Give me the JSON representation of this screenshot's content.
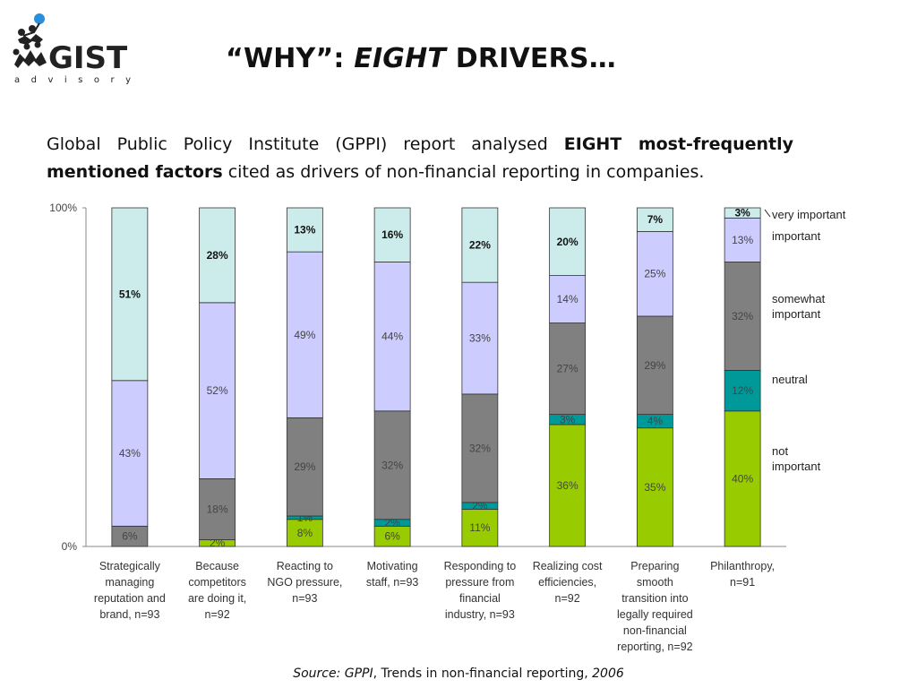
{
  "logo": {
    "brand": "GIST",
    "tagline": "advisory"
  },
  "header": {
    "title_pre": "“WHY”: ",
    "title_em": "EIGHT",
    "title_post": " DRIVERS…"
  },
  "intro": {
    "part1": "Global Public Policy Institute (GPPI) report analysed ",
    "bold": "EIGHT most-frequently mentioned factors",
    "part2": " cited as drivers of non-financial reporting in companies."
  },
  "source": {
    "prefix": "Source: ",
    "org": "GPPI",
    "middle": ", Trends in non-financial reporting, ",
    "year": "2006"
  },
  "colors": {
    "not_important": "#99cc00",
    "neutral": "#009999",
    "somewhat_important": "#808080",
    "important": "#ccccff",
    "very_important": "#ccecec",
    "border": "#333333"
  },
  "chart_data": {
    "type": "bar",
    "stacked": true,
    "ylim": [
      0,
      100
    ],
    "y_ticks": [
      "0%",
      "100%"
    ],
    "categories": [
      "Strategically managing reputation and brand, n=93",
      "Because competitors are doing it, n=92",
      "Reacting to NGO pressure, n=93",
      "Motivating staff, n=93",
      "Responding to pressure from financial industry, n=93",
      "Realizing cost efficiencies, n=92",
      "Preparing smooth transition into legally required non-financial reporting, n=92",
      "Philanthropy, n=91"
    ],
    "category_lines": [
      [
        "Strategically",
        "managing",
        "reputation and",
        "brand, n=93"
      ],
      [
        "Because",
        "competitors",
        "are doing it,",
        "n=92"
      ],
      [
        "Reacting to",
        "NGO pressure,",
        "n=93"
      ],
      [
        "Motivating",
        "staff, n=93"
      ],
      [
        "Responding to",
        "pressure from",
        "financial",
        "industry, n=93"
      ],
      [
        "Realizing cost",
        "efficiencies,",
        "n=92"
      ],
      [
        "Preparing",
        "smooth",
        "transition into",
        "legally required",
        "non-financial",
        "reporting, n=92"
      ],
      [
        "Philanthropy,",
        "n=91"
      ]
    ],
    "series": [
      {
        "name": "not important",
        "legend_lines": [
          "not",
          "important"
        ],
        "color": "#99cc00",
        "values": [
          0,
          2,
          8,
          6,
          11,
          36,
          35,
          40
        ],
        "labels": [
          "",
          "2%",
          "8%",
          "6%",
          "11%",
          "36%",
          "35%",
          "40%"
        ]
      },
      {
        "name": "neutral",
        "legend_lines": [
          "neutral"
        ],
        "color": "#009999",
        "values": [
          0,
          0,
          1,
          2,
          2,
          3,
          4,
          12
        ],
        "labels": [
          "",
          "",
          "1%",
          "2%",
          "2%",
          "3%",
          "4%",
          "12%"
        ]
      },
      {
        "name": "somewhat important",
        "legend_lines": [
          "somewhat",
          "important"
        ],
        "color": "#808080",
        "values": [
          6,
          18,
          29,
          32,
          32,
          27,
          29,
          32
        ],
        "labels": [
          "6%",
          "18%",
          "29%",
          "32%",
          "32%",
          "27%",
          "29%",
          "32%"
        ]
      },
      {
        "name": "important",
        "legend_lines": [
          "important"
        ],
        "color": "#ccccff",
        "values": [
          43,
          52,
          49,
          44,
          33,
          14,
          25,
          13
        ],
        "labels": [
          "43%",
          "52%",
          "49%",
          "44%",
          "33%",
          "14%",
          "25%",
          "13%"
        ]
      },
      {
        "name": "very important",
        "legend_lines": [
          "very important"
        ],
        "color": "#ccecec",
        "values": [
          51,
          28,
          13,
          16,
          22,
          20,
          7,
          3
        ],
        "labels": [
          "51%",
          "28%",
          "13%",
          "16%",
          "22%",
          "20%",
          "7%",
          "3%"
        ]
      }
    ]
  }
}
